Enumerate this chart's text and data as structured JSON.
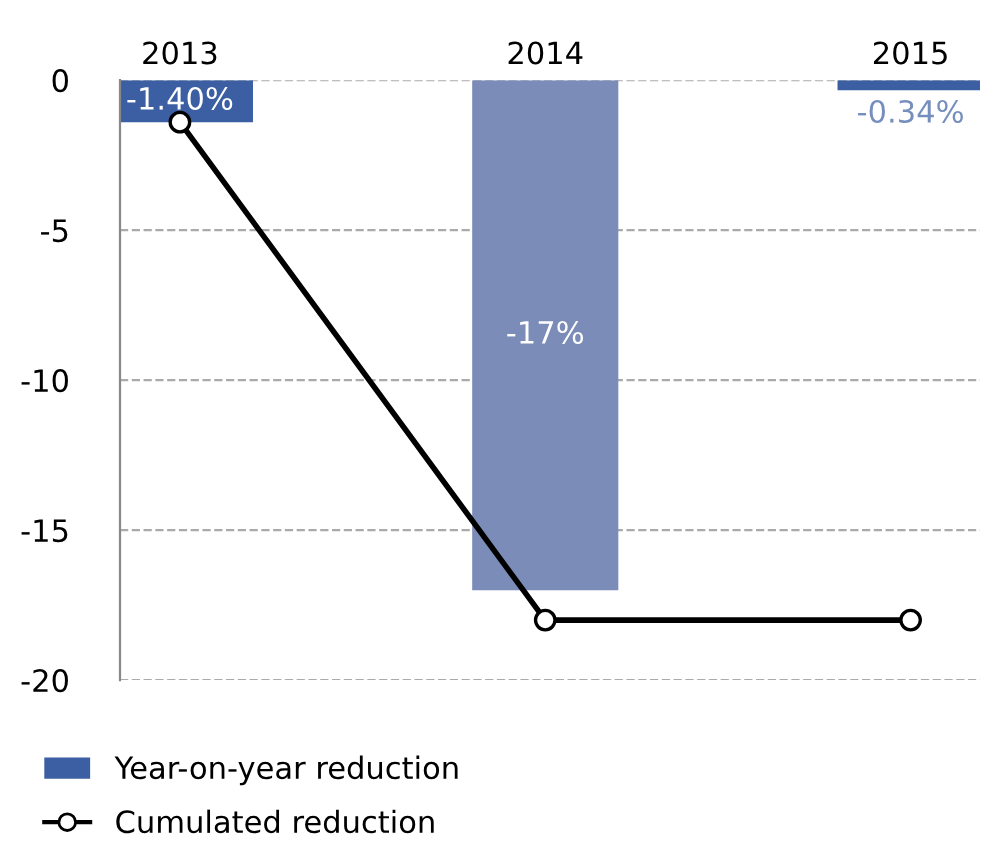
{
  "chart_data": {
    "type": "bar",
    "categories": [
      "2013",
      "2014",
      "2015"
    ],
    "series": [
      {
        "name": "Year-on-year reduction",
        "colors": [
          "#3b5fa2",
          "#7b8cb9",
          "#3b5fa2"
        ],
        "values": [
          -1.4,
          -17,
          -0.34
        ],
        "value_labels": [
          "-1.40%",
          "-17%",
          "-0.34%"
        ]
      },
      {
        "name": "Cumulated reduction",
        "type": "line",
        "color": "#000000",
        "values": [
          -1.4,
          -18,
          -18
        ]
      }
    ],
    "ylim": [
      -20,
      0
    ],
    "yticks": [
      0,
      -5,
      -10,
      -15,
      -20
    ],
    "grid": "y",
    "legend": "bottom left",
    "marker": "circle",
    "line_style": "solid"
  }
}
